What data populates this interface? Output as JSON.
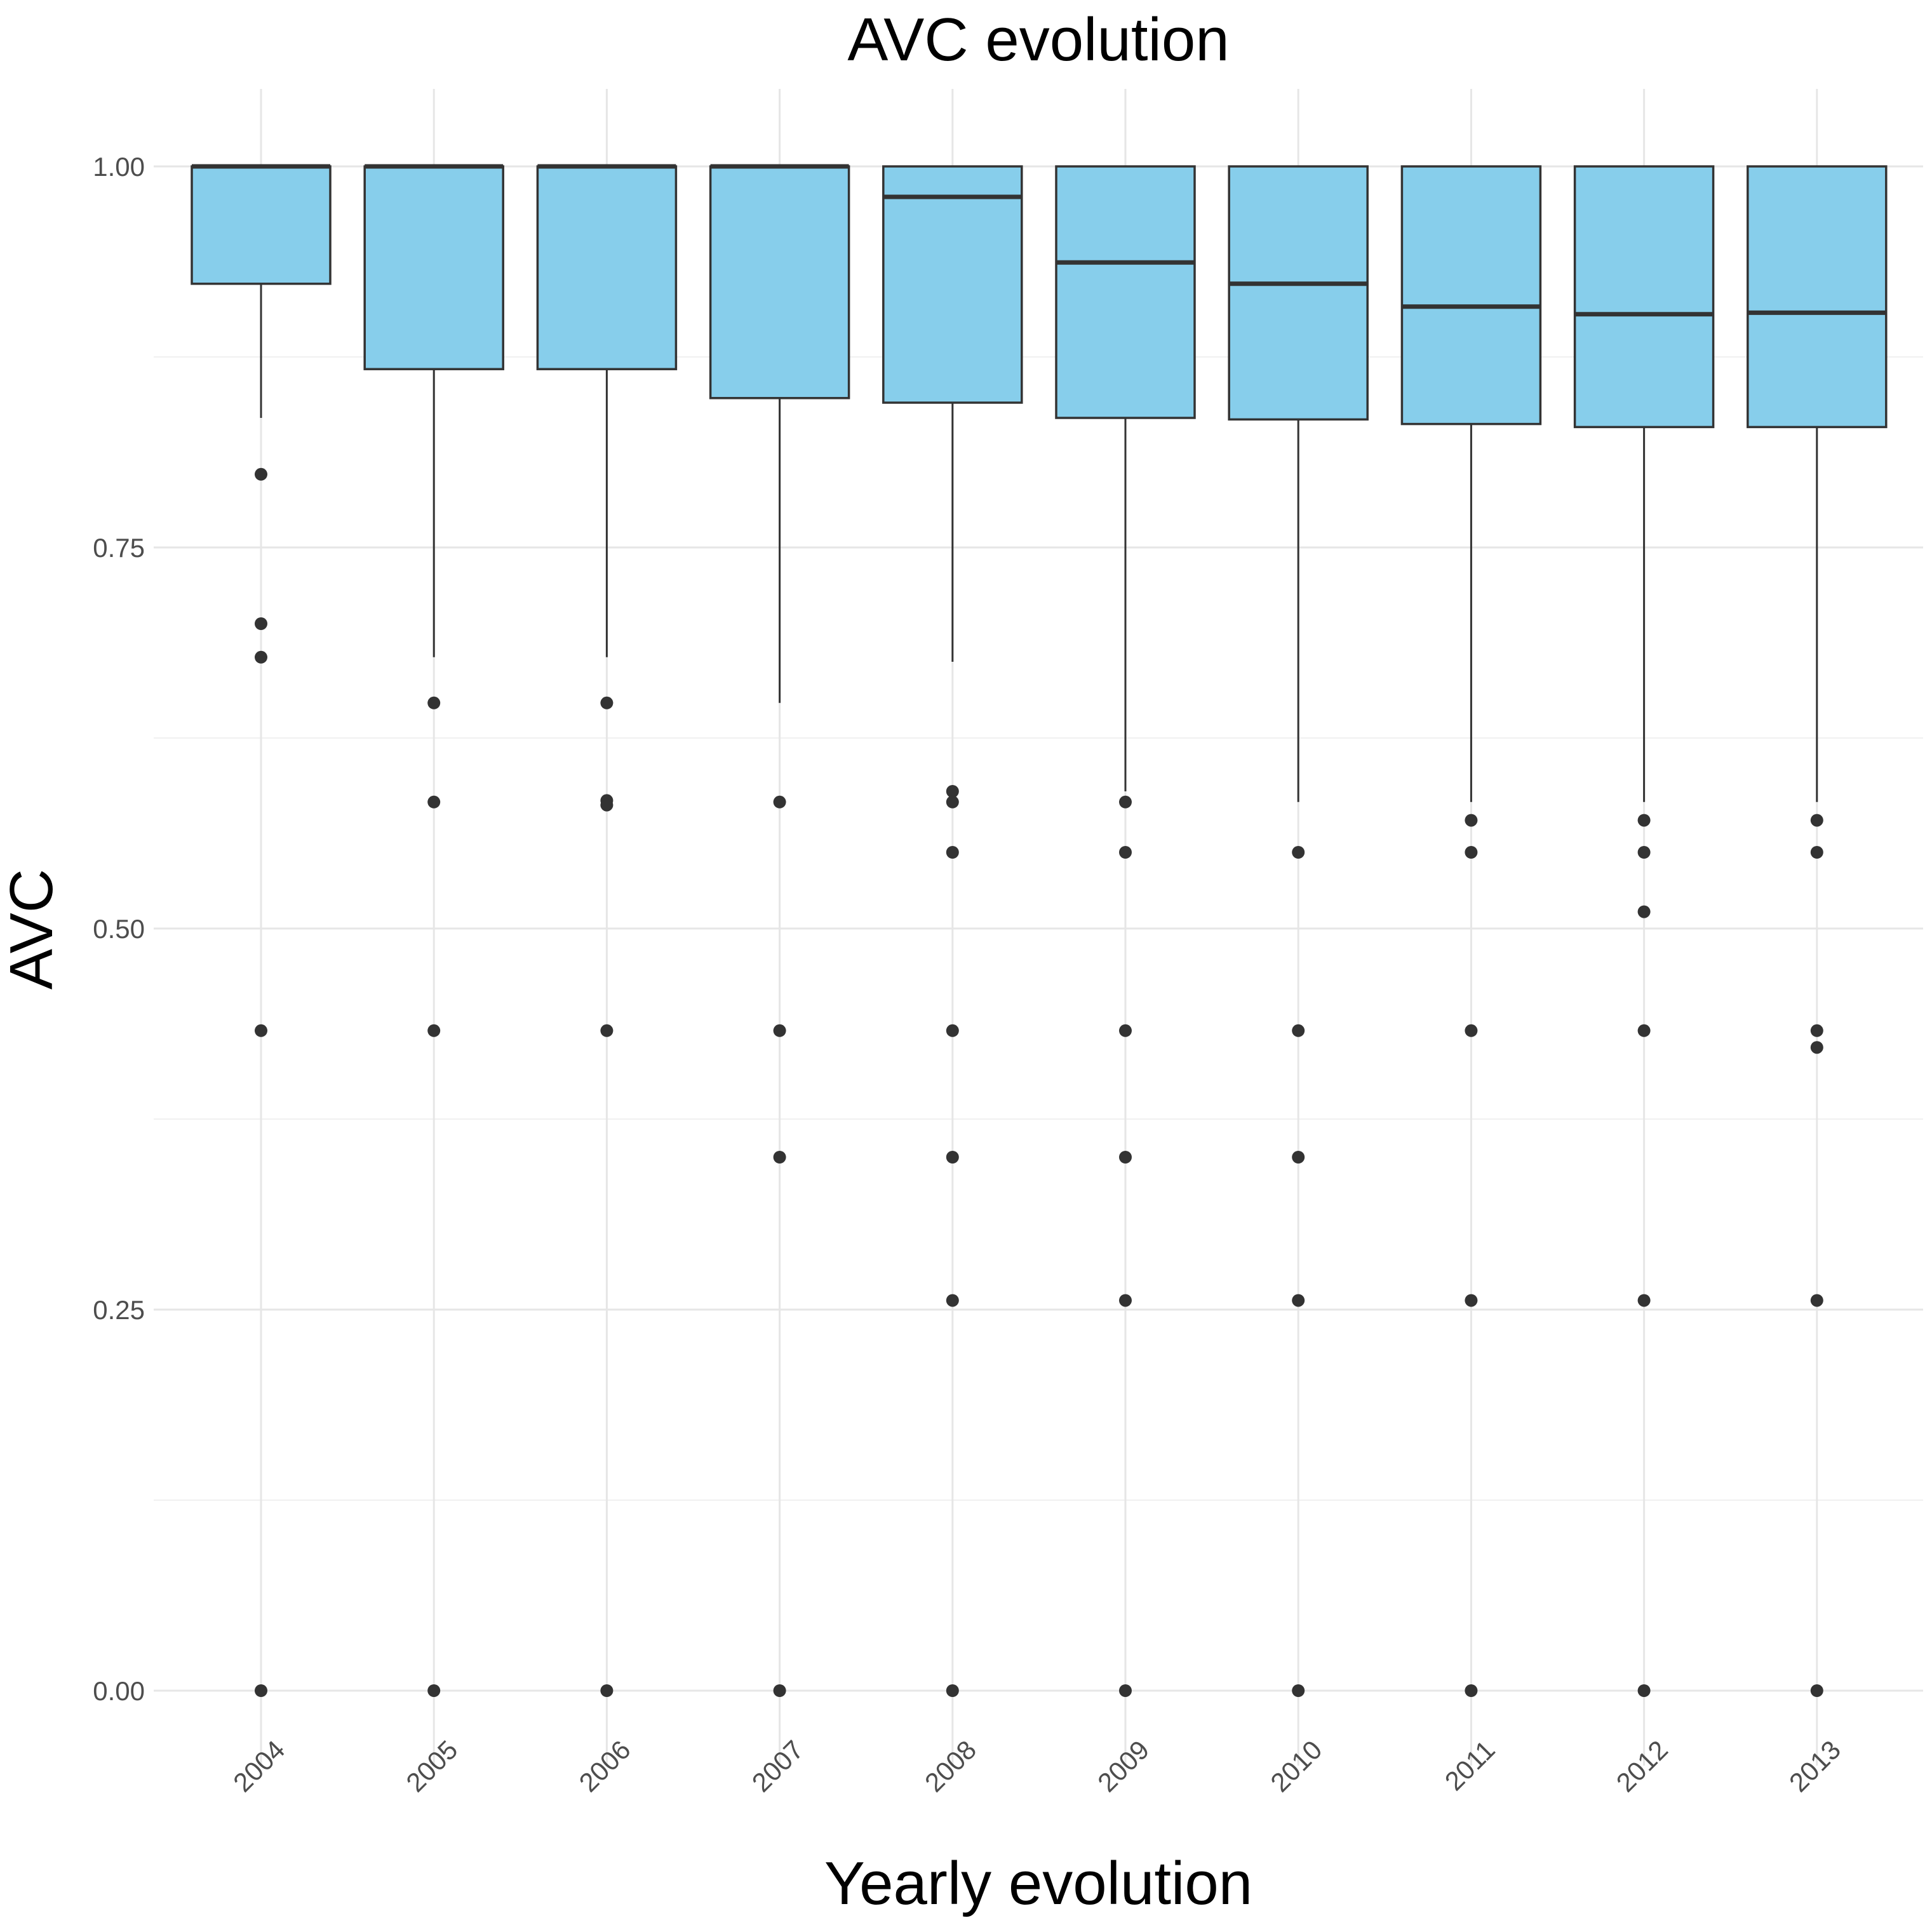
{
  "chart_data": {
    "type": "boxplot",
    "title": "AVC evolution",
    "xlabel": "Yearly evolution",
    "ylabel": "AVC",
    "categories": [
      "2004",
      "2005",
      "2006",
      "2007",
      "2008",
      "2009",
      "2010",
      "2011",
      "2012",
      "2013"
    ],
    "yticks": [
      "0.00",
      "0.25",
      "0.50",
      "0.75",
      "1.00"
    ],
    "ylim": [
      -0.05,
      1.05
    ],
    "grid": true,
    "legend": "none",
    "colors": {
      "box_fill": "#87CEEB",
      "box_stroke": "#333333",
      "outlier": "#333333",
      "grid_major": "#e6e6e6",
      "grid_minor": "#f0f0f0"
    },
    "boxes": [
      {
        "category": "2004",
        "whisker_low": 0.835,
        "q1": 0.923,
        "median": 1.0,
        "q3": 1.0,
        "whisker_high": 1.0,
        "outliers": [
          0.798,
          0.7,
          0.678,
          0.433,
          0.0
        ]
      },
      {
        "category": "2005",
        "whisker_low": 0.678,
        "q1": 0.867,
        "median": 1.0,
        "q3": 1.0,
        "whisker_high": 1.0,
        "outliers": [
          0.648,
          0.583,
          0.433,
          0.0
        ]
      },
      {
        "category": "2006",
        "whisker_low": 0.678,
        "q1": 0.867,
        "median": 1.0,
        "q3": 1.0,
        "whisker_high": 1.0,
        "outliers": [
          0.648,
          0.584,
          0.581,
          0.433,
          0.0
        ]
      },
      {
        "category": "2007",
        "whisker_low": 0.648,
        "q1": 0.848,
        "median": 1.0,
        "q3": 1.0,
        "whisker_high": 1.0,
        "outliers": [
          0.583,
          0.433,
          0.35,
          0.0
        ]
      },
      {
        "category": "2008",
        "whisker_low": 0.675,
        "q1": 0.845,
        "median": 0.98,
        "q3": 1.0,
        "whisker_high": 1.0,
        "outliers": [
          0.59,
          0.583,
          0.55,
          0.433,
          0.35,
          0.256,
          0.0
        ]
      },
      {
        "category": "2009",
        "whisker_low": 0.59,
        "q1": 0.835,
        "median": 0.937,
        "q3": 1.0,
        "whisker_high": 1.0,
        "outliers": [
          0.583,
          0.55,
          0.433,
          0.35,
          0.256,
          0.0
        ]
      },
      {
        "category": "2010",
        "whisker_low": 0.583,
        "q1": 0.834,
        "median": 0.923,
        "q3": 1.0,
        "whisker_high": 1.0,
        "outliers": [
          0.55,
          0.433,
          0.35,
          0.256,
          0.0
        ]
      },
      {
        "category": "2011",
        "whisker_low": 0.583,
        "q1": 0.831,
        "median": 0.908,
        "q3": 1.0,
        "whisker_high": 1.0,
        "outliers": [
          0.571,
          0.55,
          0.433,
          0.256,
          0.0
        ]
      },
      {
        "category": "2012",
        "whisker_low": 0.583,
        "q1": 0.829,
        "median": 0.903,
        "q3": 1.0,
        "whisker_high": 1.0,
        "outliers": [
          0.571,
          0.55,
          0.511,
          0.433,
          0.256,
          0.0
        ]
      },
      {
        "category": "2013",
        "whisker_low": 0.583,
        "q1": 0.829,
        "median": 0.904,
        "q3": 1.0,
        "whisker_high": 1.0,
        "outliers": [
          0.571,
          0.55,
          0.433,
          0.422,
          0.256,
          0.0
        ]
      }
    ]
  }
}
